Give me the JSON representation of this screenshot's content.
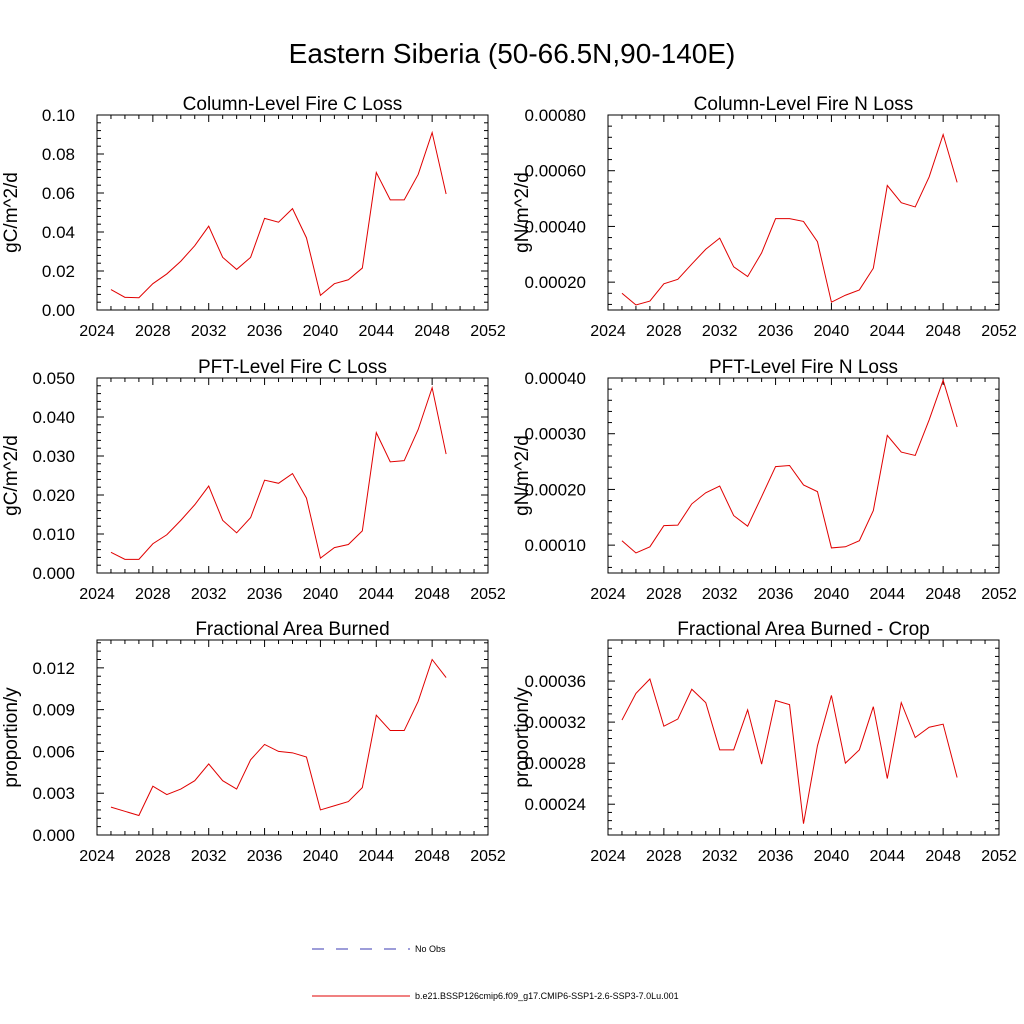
{
  "main_title": "Eastern Siberia (50-66.5N,90-140E)",
  "legend": {
    "obs_label": "No Obs",
    "model_label": "b.e21.BSSP126cmip6.f09_g17.CMIP6-SSP1-2.6-SSP3-7.0Lu.001",
    "obs_color": "#3b3bb3",
    "model_color": "#e00000"
  },
  "chart_data": [
    {
      "type": "line",
      "title": "Column-Level Fire C Loss",
      "ylabel": "gC/m^2/d",
      "xlim": [
        2024,
        2052
      ],
      "ylim": [
        0,
        0.1
      ],
      "x_ticks": [
        2024,
        2028,
        2032,
        2036,
        2040,
        2044,
        2048,
        2052
      ],
      "y_ticks": [
        "0.00",
        "0.02",
        "0.04",
        "0.06",
        "0.08",
        "0.10"
      ],
      "x": [
        2025,
        2026,
        2027,
        2028,
        2029,
        2030,
        2031,
        2032,
        2033,
        2034,
        2035,
        2036,
        2037,
        2038,
        2039,
        2040,
        2041,
        2042,
        2043,
        2044,
        2045,
        2046,
        2047,
        2048,
        2049
      ],
      "series": [
        {
          "values": [
            0.0105,
            0.0065,
            0.0063,
            0.0135,
            0.0185,
            0.025,
            0.033,
            0.043,
            0.027,
            0.0208,
            0.027,
            0.047,
            0.045,
            0.052,
            0.037,
            0.0075,
            0.0135,
            0.0155,
            0.0215,
            0.0705,
            0.0565,
            0.0565,
            0.0695,
            0.091,
            0.0595
          ]
        }
      ]
    },
    {
      "type": "line",
      "title": "Column-Level Fire N Loss",
      "ylabel": "gN/m^2/d",
      "xlim": [
        2024,
        2052
      ],
      "ylim": [
        0.0001,
        0.0008
      ],
      "x_ticks": [
        2024,
        2028,
        2032,
        2036,
        2040,
        2044,
        2048,
        2052
      ],
      "y_ticks": [
        "0.00020",
        "0.00040",
        "0.00060",
        "0.00080"
      ],
      "x": [
        2025,
        2026,
        2027,
        2028,
        2029,
        2030,
        2031,
        2032,
        2033,
        2034,
        2035,
        2036,
        2037,
        2038,
        2039,
        2040,
        2041,
        2042,
        2043,
        2044,
        2045,
        2046,
        2047,
        2048,
        2049
      ],
      "series": [
        {
          "values": [
            0.00016,
            0.000118,
            0.000132,
            0.000194,
            0.00021,
            0.000265,
            0.000318,
            0.000358,
            0.000255,
            0.00022,
            0.000305,
            0.000428,
            0.000428,
            0.000418,
            0.000345,
            0.000128,
            0.000153,
            0.000172,
            0.00025,
            0.000547,
            0.000485,
            0.00047,
            0.000578,
            0.00073,
            0.000558
          ]
        }
      ]
    },
    {
      "type": "line",
      "title": "PFT-Level Fire C Loss",
      "ylabel": "gC/m^2/d",
      "xlim": [
        2024,
        2052
      ],
      "ylim": [
        0,
        0.05
      ],
      "x_ticks": [
        2024,
        2028,
        2032,
        2036,
        2040,
        2044,
        2048,
        2052
      ],
      "y_ticks": [
        "0.000",
        "0.010",
        "0.020",
        "0.030",
        "0.040",
        "0.050"
      ],
      "x": [
        2025,
        2026,
        2027,
        2028,
        2029,
        2030,
        2031,
        2032,
        2033,
        2034,
        2035,
        2036,
        2037,
        2038,
        2039,
        2040,
        2041,
        2042,
        2043,
        2044,
        2045,
        2046,
        2047,
        2048,
        2049
      ],
      "series": [
        {
          "values": [
            0.0053,
            0.0035,
            0.0035,
            0.0075,
            0.0098,
            0.0135,
            0.0175,
            0.0223,
            0.0135,
            0.0103,
            0.0142,
            0.0238,
            0.023,
            0.0255,
            0.0192,
            0.0038,
            0.0065,
            0.0073,
            0.0108,
            0.036,
            0.0285,
            0.0288,
            0.0368,
            0.0475,
            0.0305
          ]
        }
      ]
    },
    {
      "type": "line",
      "title": "PFT-Level Fire N Loss",
      "ylabel": "gN/m^2/d",
      "xlim": [
        2024,
        2052
      ],
      "ylim": [
        5e-05,
        0.0004
      ],
      "x_ticks": [
        2024,
        2028,
        2032,
        2036,
        2040,
        2044,
        2048,
        2052
      ],
      "y_ticks": [
        "0.00010",
        "0.00020",
        "0.00030",
        "0.00040"
      ],
      "x": [
        2025,
        2026,
        2027,
        2028,
        2029,
        2030,
        2031,
        2032,
        2033,
        2034,
        2035,
        2036,
        2037,
        2038,
        2039,
        2040,
        2041,
        2042,
        2043,
        2044,
        2045,
        2046,
        2047,
        2048,
        2049
      ],
      "series": [
        {
          "values": [
            0.000108,
            8.6e-05,
            9.7e-05,
            0.000135,
            0.000136,
            0.000174,
            0.000194,
            0.000206,
            0.000153,
            0.000134,
            0.000187,
            0.000241,
            0.000243,
            0.000208,
            0.000196,
            9.5e-05,
            9.7e-05,
            0.000108,
            0.000162,
            0.000297,
            0.000267,
            0.000261,
            0.000325,
            0.000396,
            0.000312
          ]
        }
      ]
    },
    {
      "type": "line",
      "title": "Fractional Area Burned",
      "ylabel": "proportion/y",
      "xlim": [
        2024,
        2052
      ],
      "ylim": [
        0,
        0.014
      ],
      "x_ticks": [
        2024,
        2028,
        2032,
        2036,
        2040,
        2044,
        2048,
        2052
      ],
      "y_ticks": [
        "0.000",
        "0.003",
        "0.006",
        "0.009",
        "0.012"
      ],
      "x": [
        2025,
        2026,
        2027,
        2028,
        2029,
        2030,
        2031,
        2032,
        2033,
        2034,
        2035,
        2036,
        2037,
        2038,
        2039,
        2040,
        2041,
        2042,
        2043,
        2044,
        2045,
        2046,
        2047,
        2048,
        2049
      ],
      "series": [
        {
          "values": [
            0.002,
            0.0017,
            0.0014,
            0.0035,
            0.0029,
            0.0033,
            0.0039,
            0.0051,
            0.0039,
            0.0033,
            0.0054,
            0.0065,
            0.006,
            0.0059,
            0.0056,
            0.0018,
            0.0021,
            0.0024,
            0.0034,
            0.0086,
            0.0075,
            0.0075,
            0.0096,
            0.0126,
            0.0113
          ]
        }
      ]
    },
    {
      "type": "line",
      "title": "Fractional Area Burned - Crop",
      "ylabel": "proportion/y",
      "xlim": [
        2024,
        2052
      ],
      "ylim": [
        0.00021,
        0.0004
      ],
      "x_ticks": [
        2024,
        2028,
        2032,
        2036,
        2040,
        2044,
        2048,
        2052
      ],
      "y_ticks": [
        "0.00024",
        "0.00028",
        "0.00032",
        "0.00036"
      ],
      "x": [
        2025,
        2026,
        2027,
        2028,
        2029,
        2030,
        2031,
        2032,
        2033,
        2034,
        2035,
        2036,
        2037,
        2038,
        2039,
        2040,
        2041,
        2042,
        2043,
        2044,
        2045,
        2046,
        2047,
        2048,
        2049
      ],
      "series": [
        {
          "values": [
            0.000322,
            0.000348,
            0.000362,
            0.000316,
            0.000323,
            0.000352,
            0.000339,
            0.000293,
            0.000293,
            0.000332,
            0.000279,
            0.000341,
            0.000337,
            0.000221,
            0.000297,
            0.000346,
            0.00028,
            0.000293,
            0.000335,
            0.000265,
            0.000339,
            0.000305,
            0.000315,
            0.000318,
            0.000266
          ]
        }
      ]
    }
  ]
}
